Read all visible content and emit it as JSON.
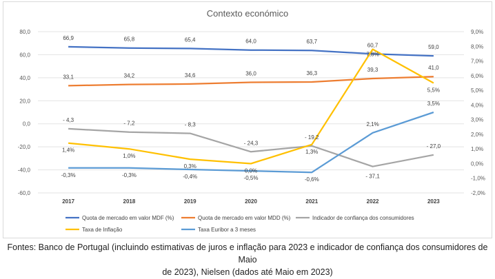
{
  "chart_data": {
    "type": "line",
    "title": "Contexto económico",
    "categories": [
      "2017",
      "2018",
      "2019",
      "2020",
      "2021",
      "2022",
      "2023"
    ],
    "y_left": {
      "ylim": [
        -60,
        80
      ],
      "ticks": [
        "80,0",
        "60,0",
        "40,0",
        "20,0",
        "0,0",
        "-20,0",
        "-40,0",
        "-60,0"
      ]
    },
    "y_right": {
      "ylim": [
        -2,
        9
      ],
      "ticks": [
        "9,0%",
        "8,0%",
        "7,0%",
        "6,0%",
        "5,0%",
        "4,0%",
        "3,0%",
        "2,0%",
        "1,0%",
        "0,0%",
        "-1,0%",
        "-2,0%"
      ]
    },
    "grid": true,
    "legend_position": "bottom",
    "series": [
      {
        "name": "Quota de mercado em valor MDF (%)",
        "axis": "left",
        "color": "#4472c4",
        "values": [
          66.9,
          65.8,
          65.4,
          64.0,
          63.7,
          60.7,
          59.0
        ],
        "labels": [
          "66,9",
          "65,8",
          "65,4",
          "64,0",
          "63,7",
          "60,7",
          "59,0"
        ]
      },
      {
        "name": "Quota de mercado em valor MDD (%)",
        "axis": "left",
        "color": "#ed7d31",
        "values": [
          33.1,
          34.2,
          34.6,
          36.0,
          36.3,
          39.3,
          41.0
        ],
        "labels": [
          "33,1",
          "34,2",
          "34,6",
          "36,0",
          "36,3",
          "39,3",
          "41,0"
        ]
      },
      {
        "name": "Indicador de confiança dos consumidores",
        "axis": "left",
        "color": "#a5a5a5",
        "values": [
          -4.3,
          -7.2,
          -8.3,
          -24.3,
          -19.2,
          -37.1,
          -27.0
        ],
        "labels": [
          "- 4,3",
          "- 7,2",
          "- 8,3",
          "- 24,3",
          "- 19,2",
          "- 37,1",
          "- 27,0"
        ]
      },
      {
        "name": "Taxa de Inflação",
        "axis": "right",
        "color": "#ffc000",
        "values": [
          1.4,
          1.0,
          0.3,
          0.0,
          1.3,
          7.8,
          5.5
        ],
        "labels": [
          "1,4%",
          "1,0%",
          "0,3%",
          "0,0%",
          "1,3%",
          "7,8%",
          "5,5%"
        ]
      },
      {
        "name": "Taxa Euribor a 3 meses",
        "axis": "right",
        "color": "#5b9bd5",
        "values": [
          -0.3,
          -0.3,
          -0.4,
          -0.5,
          -0.6,
          2.1,
          3.5
        ],
        "labels": [
          "-0,3%",
          "-0,3%",
          "-0,4%",
          "-0,5%",
          "-0,6%",
          "2,1%",
          "3,5%"
        ]
      }
    ]
  },
  "caption": {
    "line1": "Fontes: Banco de Portugal (incluindo estimativas de juros e inflação para 2023 e indicador de confiança dos consumidores de Maio",
    "line2": "de 2023), Nielsen (dados até Maio em 2023)"
  }
}
